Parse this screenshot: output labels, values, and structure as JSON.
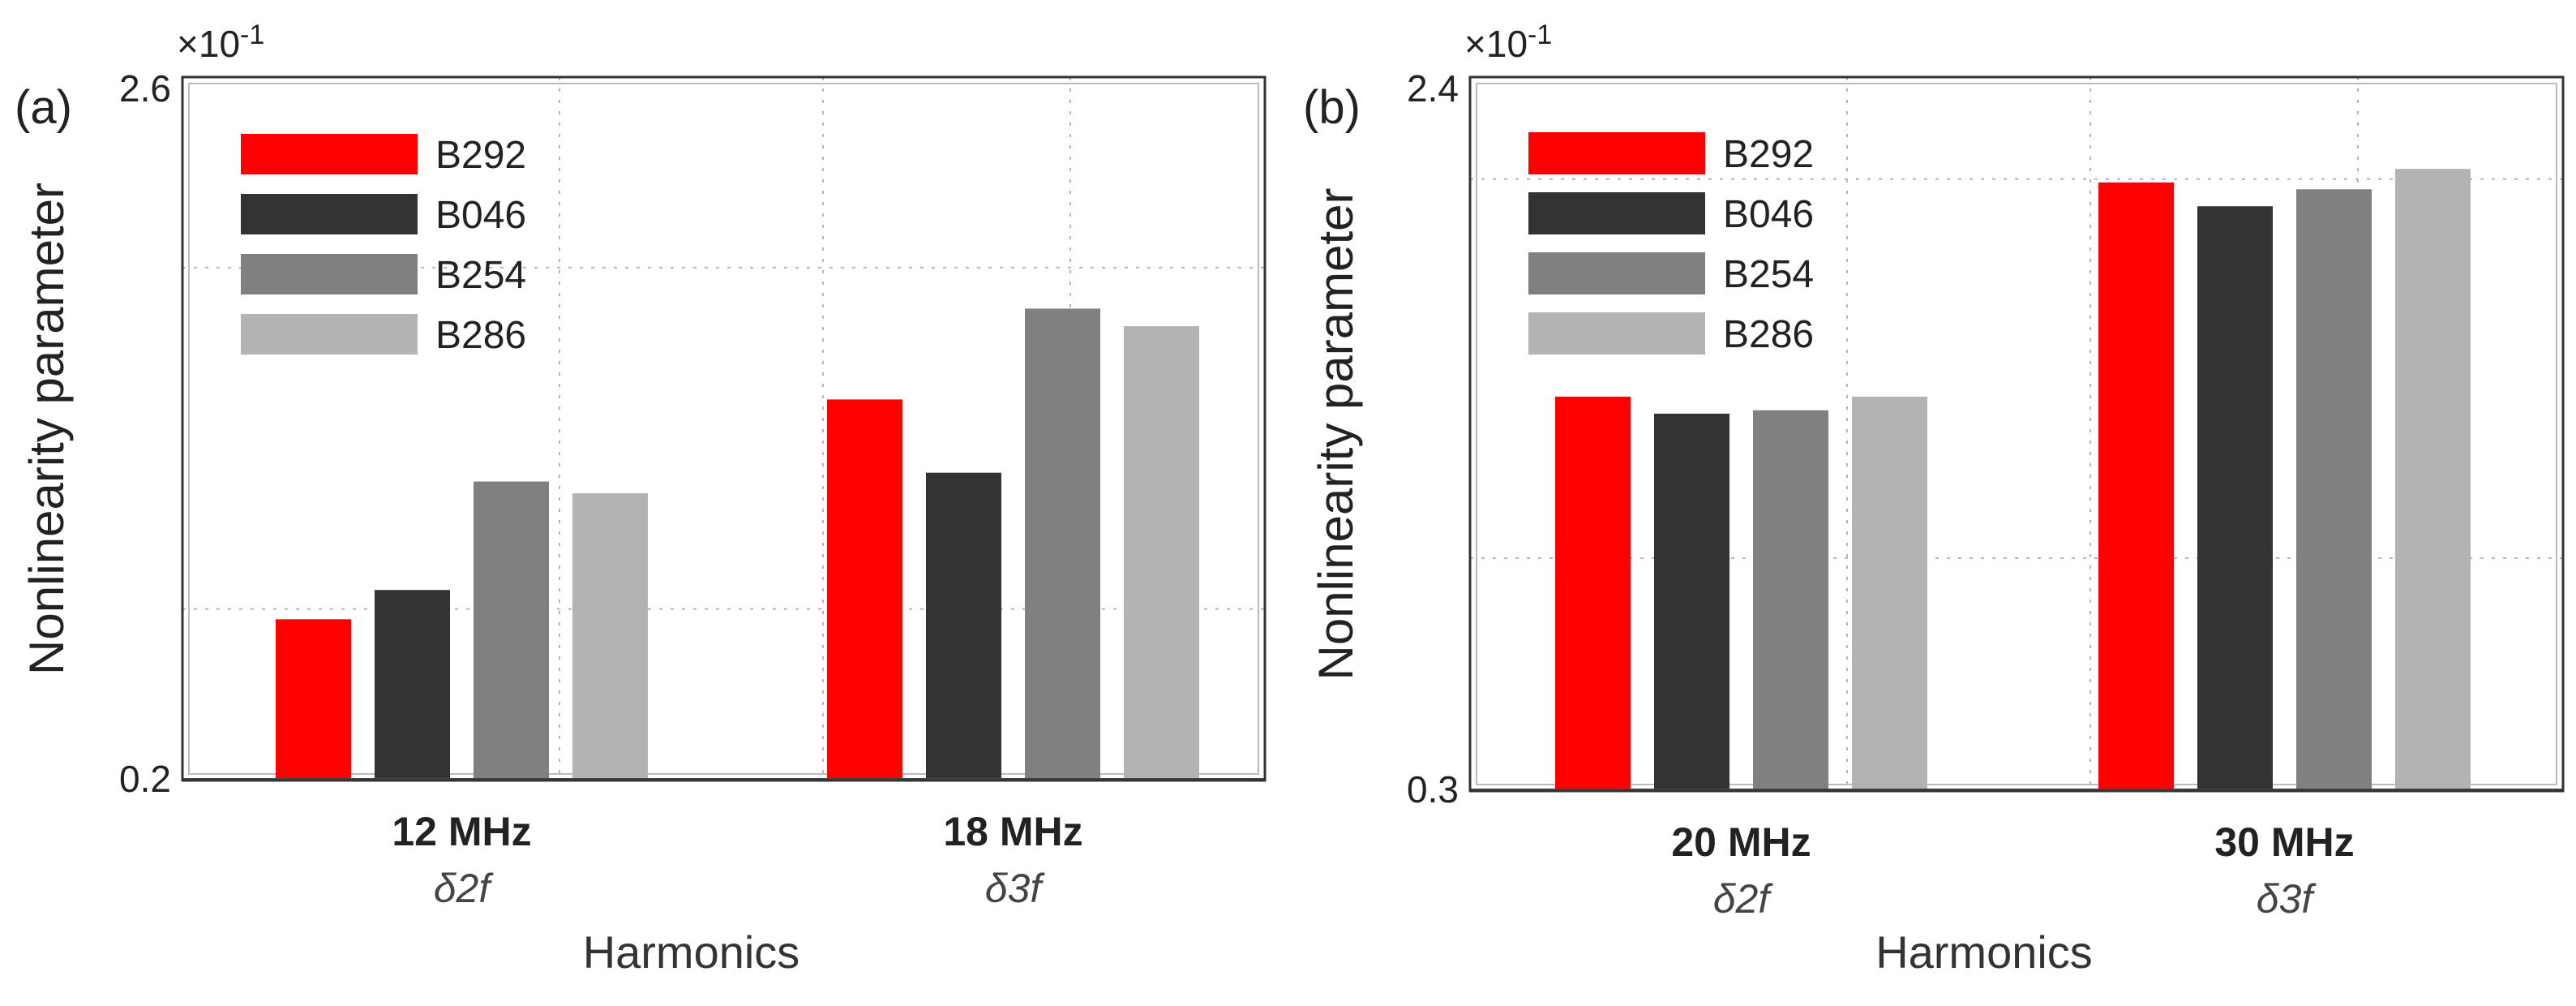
{
  "chart_data": [
    {
      "type": "bar",
      "panel_label": "(a)",
      "exponent_label": "×10",
      "exponent_power": "-1",
      "ylabel": "Nonlinearity parameter",
      "xlabel": "Harmonics",
      "ylim": [
        0.2,
        2.6
      ],
      "ytick_labels": [
        "0.2",
        "2.6"
      ],
      "grid": true,
      "legend_position": "top-left",
      "categories": [
        "12 MHz",
        "18 MHz"
      ],
      "category_sublabels": [
        "δ2f",
        "δ3f"
      ],
      "series": [
        {
          "name": "B292",
          "color": "#ff0000",
          "values": [
            0.75,
            1.5
          ]
        },
        {
          "name": "B046",
          "color": "#333333",
          "values": [
            0.85,
            1.25
          ]
        },
        {
          "name": "B254",
          "color": "#808080",
          "values": [
            1.22,
            1.81
          ]
        },
        {
          "name": "B286",
          "color": "#b3b3b3",
          "values": [
            1.18,
            1.75
          ]
        }
      ]
    },
    {
      "type": "bar",
      "panel_label": "(b)",
      "exponent_label": "×10",
      "exponent_power": "-1",
      "ylabel": "Nonlinearity parameter",
      "xlabel": "Harmonics",
      "ylim": [
        0.3,
        2.4
      ],
      "ytick_labels": [
        "0.3",
        "2.4"
      ],
      "grid": true,
      "legend_position": "top-left",
      "categories": [
        "20 MHz",
        "30 MHz"
      ],
      "category_sublabels": [
        "δ2f",
        "δ3f"
      ],
      "series": [
        {
          "name": "B292",
          "color": "#ff0000",
          "values": [
            1.46,
            2.09
          ]
        },
        {
          "name": "B046",
          "color": "#333333",
          "values": [
            1.41,
            2.02
          ]
        },
        {
          "name": "B254",
          "color": "#808080",
          "values": [
            1.42,
            2.07
          ]
        },
        {
          "name": "B286",
          "color": "#b3b3b3",
          "values": [
            1.46,
            2.13
          ]
        }
      ]
    }
  ]
}
